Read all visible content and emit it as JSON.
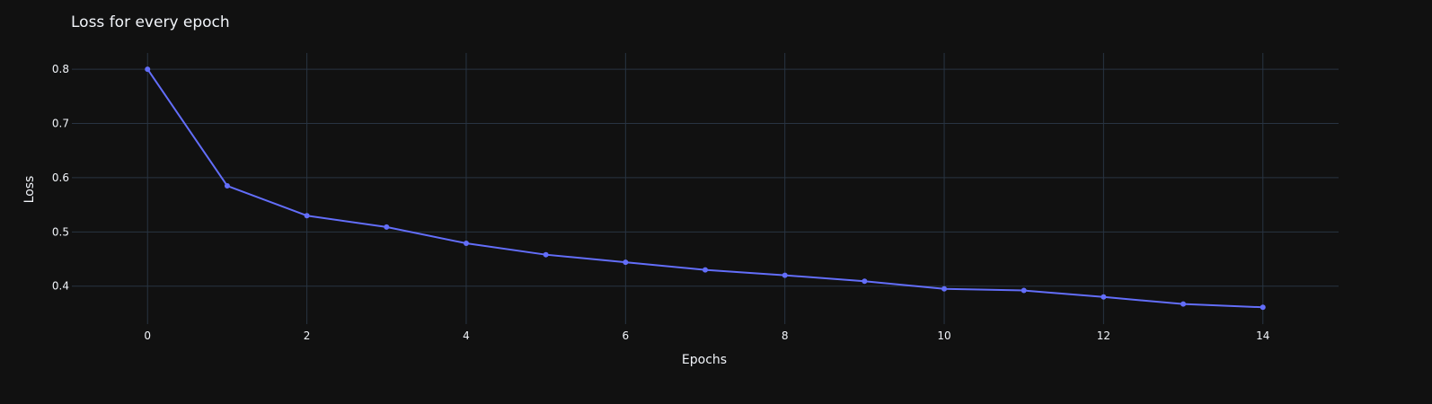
{
  "chart_data": {
    "type": "line",
    "title": "Loss for every epoch",
    "xlabel": "Epochs",
    "ylabel": "Loss",
    "x": [
      0,
      1,
      2,
      3,
      4,
      5,
      6,
      7,
      8,
      9,
      10,
      11,
      12,
      13,
      14
    ],
    "series": [
      {
        "values": [
          0.8,
          0.585,
          0.53,
          0.509,
          0.479,
          0.458,
          0.444,
          0.43,
          0.42,
          0.409,
          0.395,
          0.392,
          0.38,
          0.367,
          0.361
        ]
      }
    ],
    "xticks": [
      0,
      2,
      4,
      6,
      8,
      10,
      12,
      14
    ],
    "yticks": [
      0.4,
      0.5,
      0.6,
      0.7,
      0.8
    ],
    "xlim": [
      -0.95,
      14.95
    ],
    "ylim": [
      0.33,
      0.83
    ],
    "grid": true,
    "markers": true,
    "colors": {
      "background": "#111111",
      "line": "#636efa",
      "grid": "#283442",
      "text": "#f2f5fa"
    }
  }
}
